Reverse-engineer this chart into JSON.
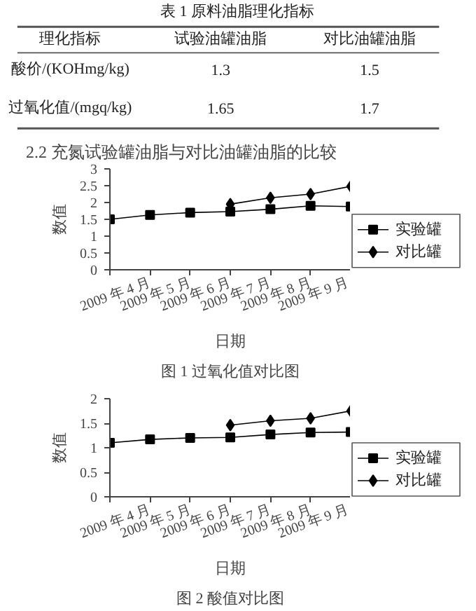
{
  "chart_data": [
    {
      "type": "other",
      "title": "表 1 原料油脂理化指标",
      "categories": [
        "理化指标",
        "试验油罐油脂",
        "对比油罐油脂"
      ],
      "y_categories": [
        "酸价/(KOHmg/kg)",
        "过氧化值/(mgq/kg)"
      ],
      "cell_labels": [
        [
          "1.3",
          "1.5"
        ],
        [
          "1.65",
          "1.7"
        ]
      ]
    },
    {
      "type": "line",
      "title": "图 1 过氧化值对比图",
      "subtitle": "2.2 充氮试验罐油脂与对比油罐油脂的比较",
      "xlabel": "日期",
      "ylabel": "数值",
      "categories": [
        null,
        "2009 年 4 月",
        "2009 年 5 月",
        "2009 年 6 月",
        "2009 年 7 月",
        "2009 年 8 月",
        "2009 年 9 月"
      ],
      "ylim": [
        0,
        3
      ],
      "yticks": [
        0,
        0.5,
        1,
        1.5,
        2,
        2.5,
        3
      ],
      "legend": "right",
      "grid": false,
      "series": [
        {
          "name": "实验罐",
          "color": "#000000",
          "marker": "square",
          "values": [
            1.5,
            1.63,
            1.7,
            1.73,
            1.8,
            1.9,
            1.88
          ]
        },
        {
          "name": "对比罐",
          "color": "#000000",
          "marker": "diamond",
          "values": [
            null,
            null,
            null,
            1.95,
            2.14,
            2.25,
            2.48
          ]
        }
      ]
    },
    {
      "type": "line",
      "title": "图 2 酸值对比图",
      "xlabel": "日期",
      "ylabel": "数值",
      "categories": [
        null,
        "2009 年 4 月",
        "2009 年 5 月",
        "2009 年 6 月",
        "2009 年 7 月",
        "2009 年 8 月",
        "2009 年 9 月"
      ],
      "ylim": [
        0,
        2
      ],
      "yticks": [
        0,
        0.5,
        1,
        1.5,
        2
      ],
      "legend": "right",
      "grid": false,
      "series": [
        {
          "name": "实验罐",
          "color": "#000000",
          "marker": "square",
          "values": [
            1.1,
            1.17,
            1.2,
            1.21,
            1.27,
            1.31,
            1.32
          ]
        },
        {
          "name": "对比罐",
          "color": "#000000",
          "marker": "diamond",
          "values": [
            null,
            null,
            null,
            1.46,
            1.55,
            1.6,
            1.75
          ]
        }
      ]
    }
  ]
}
